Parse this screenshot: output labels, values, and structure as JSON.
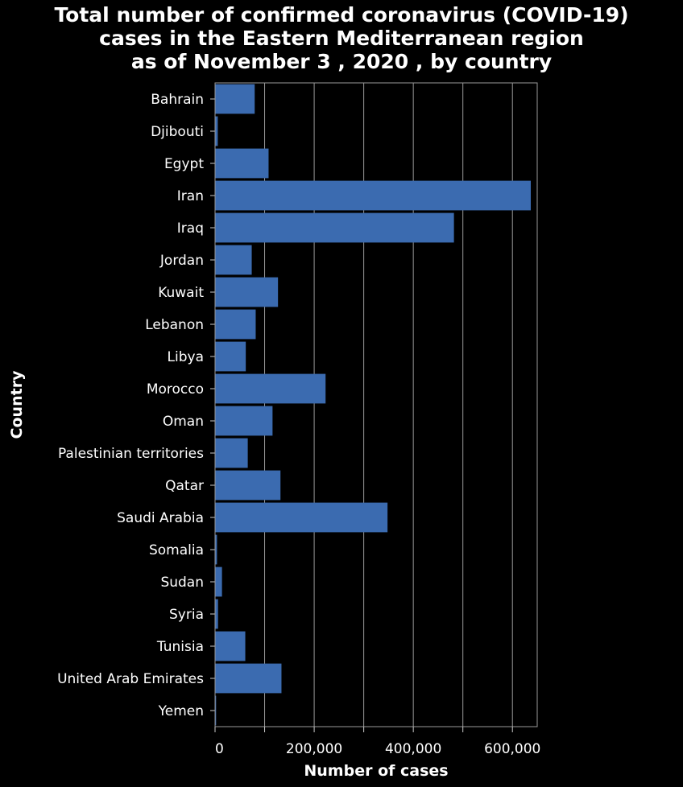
{
  "chart_data": {
    "type": "bar",
    "orientation": "horizontal",
    "title": [
      "Total number of confirmed coronavirus (COVID-19)",
      "cases in the Eastern Mediterranean region",
      "as of November 3 , 2020 , by country"
    ],
    "xlabel": "Number of cases",
    "ylabel": "Country",
    "xlim": [
      0,
      650000
    ],
    "xticks": [
      0,
      200000,
      400000,
      600000
    ],
    "xtick_labels": [
      "0",
      "200,000",
      "400,000",
      "600,000"
    ],
    "grid": true,
    "bar_color": "#3b6bb0",
    "background": "#000000",
    "categories": [
      "Bahrain",
      "Djibouti",
      "Egypt",
      "Iran",
      "Iraq",
      "Jordan",
      "Kuwait",
      "Lebanon",
      "Libya",
      "Morocco",
      "Oman",
      "Palestinian territories",
      "Qatar",
      "Saudi Arabia",
      "Somalia",
      "Sudan",
      "Syria",
      "Tunisia",
      "United Arab Emirates",
      "Yemen"
    ],
    "values": [
      80000,
      5500,
      108000,
      637000,
      482000,
      74000,
      127000,
      82000,
      62000,
      223000,
      116000,
      66000,
      132000,
      348000,
      3900,
      14000,
      6000,
      61000,
      134000,
      2100
    ]
  }
}
